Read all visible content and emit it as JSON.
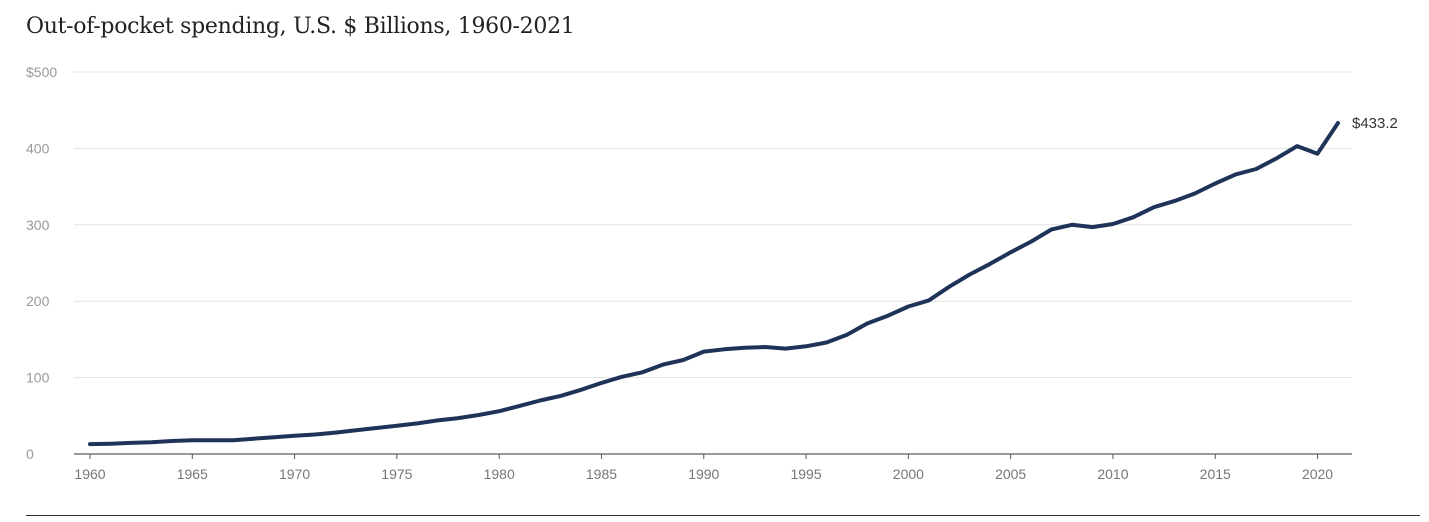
{
  "chart_data": {
    "type": "line",
    "title": "Out-of-pocket spending, U.S. $ Billions, 1960-2021",
    "xlabel": "",
    "ylabel": "",
    "xlim": [
      1960,
      2021
    ],
    "ylim": [
      0,
      500
    ],
    "x_ticks": [
      "1960",
      "1965",
      "1970",
      "1975",
      "1980",
      "1985",
      "1990",
      "1995",
      "2000",
      "2005",
      "2010",
      "2015",
      "2020"
    ],
    "y_ticks": [
      "0",
      "100",
      "200",
      "300",
      "400",
      "$500"
    ],
    "grid": true,
    "legend": "none",
    "line_color": "#1f3358",
    "series": [
      {
        "x": [
          1960,
          1961,
          1962,
          1963,
          1964,
          1965,
          1966,
          1967,
          1968,
          1969,
          1970,
          1971,
          1972,
          1973,
          1974,
          1975,
          1976,
          1977,
          1978,
          1979,
          1980,
          1981,
          1982,
          1983,
          1984,
          1985,
          1986,
          1987,
          1988,
          1989,
          1990,
          1991,
          1992,
          1993,
          1994,
          1995,
          1996,
          1997,
          1998,
          1999,
          2000,
          2001,
          2002,
          2003,
          2004,
          2005,
          2006,
          2007,
          2008,
          2009,
          2010,
          2011,
          2012,
          2013,
          2014,
          2015,
          2016,
          2017,
          2018,
          2019,
          2020,
          2021
        ],
        "values": [
          13,
          13.5,
          14.5,
          15.5,
          17,
          18,
          18,
          18,
          20,
          22,
          24,
          25.5,
          28,
          31,
          34,
          37,
          40,
          44,
          47,
          51,
          56,
          63,
          70,
          76,
          84,
          93,
          101,
          107,
          117,
          123,
          134,
          137,
          139,
          140,
          138,
          141,
          146,
          156,
          171,
          181,
          193,
          201,
          219,
          235,
          249,
          264,
          278,
          294,
          300,
          297,
          301,
          310,
          323,
          331,
          341,
          354,
          366,
          373,
          387,
          403,
          393,
          433.2
        ]
      }
    ],
    "annotations": [
      {
        "text": "$433.2",
        "x": 2021,
        "y": 433.2
      }
    ]
  }
}
